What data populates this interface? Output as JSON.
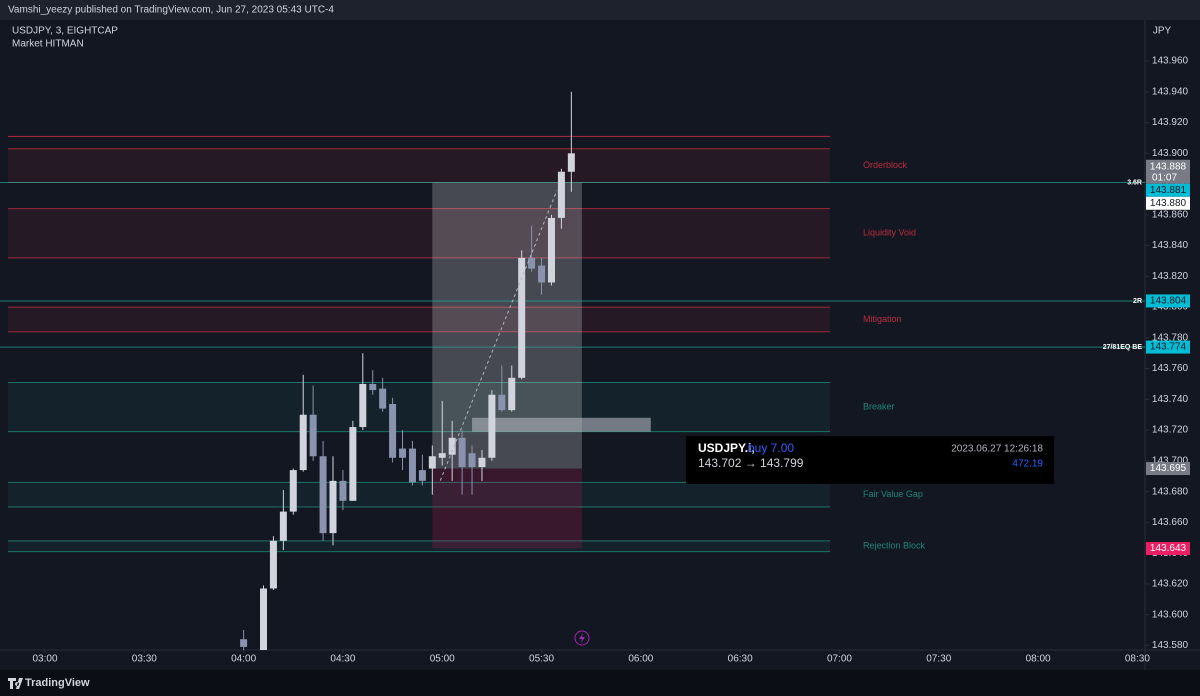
{
  "header": {
    "publisher": "Vamshi_yeezy published on TradingView.com, Jun 27, 2023 05:43 UTC-4",
    "brand": "TradingView"
  },
  "chart_data": {
    "type": "candlestick",
    "title": "USDJPY, 3, EIGHTCAP",
    "subtitle": "Market HITMAN",
    "y_axis_label": "JPY",
    "x": [
      240,
      246,
      249,
      252,
      255,
      258,
      261,
      264,
      267,
      270,
      273,
      276,
      279,
      282,
      285,
      288,
      291,
      294,
      297,
      300,
      303,
      306,
      309,
      312,
      315,
      318,
      321,
      324,
      327,
      330,
      333,
      336,
      339
    ],
    "open": [
      143.584,
      143.577,
      143.617,
      143.648,
      143.667,
      143.694,
      143.73,
      143.703,
      143.653,
      143.687,
      143.674,
      143.722,
      143.75,
      143.747,
      143.737,
      143.708,
      143.708,
      143.694,
      143.695,
      143.702,
      143.704,
      143.715,
      143.705,
      143.696,
      143.702,
      143.743,
      143.733,
      143.754,
      143.832,
      143.827,
      143.816,
      143.858,
      143.888
    ],
    "high": [
      143.59,
      143.619,
      143.651,
      143.681,
      143.695,
      143.756,
      143.749,
      143.713,
      143.703,
      143.694,
      143.726,
      143.77,
      143.759,
      143.754,
      143.741,
      143.72,
      143.713,
      143.704,
      143.71,
      143.739,
      143.726,
      143.72,
      143.71,
      143.707,
      143.746,
      143.762,
      143.762,
      143.837,
      143.853,
      143.832,
      143.86,
      143.89,
      143.94
    ],
    "low": [
      143.577,
      143.577,
      143.616,
      143.642,
      143.665,
      143.693,
      143.7,
      143.648,
      143.645,
      143.668,
      143.674,
      143.72,
      143.743,
      143.732,
      143.699,
      143.694,
      143.684,
      143.684,
      143.678,
      143.697,
      143.687,
      143.678,
      143.678,
      143.687,
      143.7,
      143.732,
      143.732,
      143.753,
      143.823,
      143.808,
      143.814,
      143.851,
      143.875
    ],
    "close": [
      143.579,
      143.617,
      143.648,
      143.667,
      143.694,
      143.73,
      143.703,
      143.653,
      143.687,
      143.674,
      143.722,
      143.75,
      143.746,
      143.734,
      143.702,
      143.702,
      143.686,
      143.687,
      143.703,
      143.705,
      143.715,
      143.696,
      143.696,
      143.702,
      143.743,
      143.733,
      143.754,
      143.832,
      143.825,
      143.816,
      143.858,
      143.888,
      143.9
    ],
    "up_color": "#d1d4dc",
    "down_color": "#8a93ad",
    "xlim": [
      166.4,
      512.3
    ],
    "xticks": [
      {
        "value": 180,
        "label": "03:00"
      },
      {
        "value": 210,
        "label": "03:30"
      },
      {
        "value": 240,
        "label": "04:00"
      },
      {
        "value": 270,
        "label": "04:30"
      },
      {
        "value": 300,
        "label": "05:00"
      },
      {
        "value": 330,
        "label": "05:30"
      },
      {
        "value": 360,
        "label": "06:00"
      },
      {
        "value": 390,
        "label": "06:30"
      },
      {
        "value": 420,
        "label": "07:00"
      },
      {
        "value": 450,
        "label": "07:30"
      },
      {
        "value": 480,
        "label": "08:00"
      },
      {
        "value": 510,
        "label": "08:30"
      }
    ],
    "ylim": [
      143.577,
      143.988
    ],
    "yticks": [
      {
        "value": 143.58,
        "label": "143.580"
      },
      {
        "value": 143.6,
        "label": "143.600"
      },
      {
        "value": 143.62,
        "label": "143.620"
      },
      {
        "value": 143.64,
        "label": "143.640"
      },
      {
        "value": 143.66,
        "label": "143.660"
      },
      {
        "value": 143.68,
        "label": "143.680"
      },
      {
        "value": 143.7,
        "label": "143.700"
      },
      {
        "value": 143.72,
        "label": "143.720"
      },
      {
        "value": 143.74,
        "label": "143.740"
      },
      {
        "value": 143.76,
        "label": "143.760"
      },
      {
        "value": 143.78,
        "label": "143.780"
      },
      {
        "value": 143.8,
        "label": "143.800"
      },
      {
        "value": 143.82,
        "label": "143.820"
      },
      {
        "value": 143.84,
        "label": "143.840"
      },
      {
        "value": 143.86,
        "label": "143.860"
      },
      {
        "value": 143.88,
        "label": "143.880"
      },
      {
        "value": 143.9,
        "label": "143.900"
      },
      {
        "value": 143.92,
        "label": "143.920"
      },
      {
        "value": 143.94,
        "label": "143.940"
      },
      {
        "value": 143.96,
        "label": "143.960"
      }
    ],
    "zones": [
      {
        "label": "Orderblock",
        "top": 143.903,
        "bottom": 143.881,
        "color": "#f23645"
      },
      {
        "label": "Liquidity Void",
        "top": 143.864,
        "bottom": 143.832,
        "color": "#f23645"
      },
      {
        "label": "Mitigation",
        "top": 143.8,
        "bottom": 143.784,
        "color": "#f23645"
      },
      {
        "label": "Breaker",
        "top": 143.751,
        "bottom": 143.719,
        "color": "#22ab94"
      },
      {
        "label": "Fair Value Gap",
        "top": 143.686,
        "bottom": 143.67,
        "color": "#22ab94"
      },
      {
        "label": "Rejection Block",
        "top": 143.648,
        "bottom": 143.641,
        "color": "#22ab94"
      }
    ],
    "resistance_line": 143.911,
    "levels": [
      {
        "label": "3.6R",
        "value": 143.881
      },
      {
        "label": "2R",
        "value": 143.804
      },
      {
        "label": "27/81EQ BE",
        "value": 143.774
      }
    ],
    "price_tags": [
      {
        "value": 143.888,
        "countdown": "01:07",
        "color": "#787b86"
      },
      {
        "value": 143.881,
        "color": "#00bcd4"
      },
      {
        "value": {
          "value": 143.88,
          "label": "143.880"
        },
        "color": "#ffffff"
      },
      {
        "value": 143.804,
        "color": "#00bcd4"
      },
      {
        "value": 143.774,
        "color": "#00bcd4"
      },
      {
        "value": 143.695,
        "color": "#787b86"
      },
      {
        "value": 143.643,
        "color": "#e91e63"
      }
    ],
    "position": {
      "start": 297,
      "end": 342.2,
      "entry": 143.695,
      "target": 143.881,
      "stop": 143.643,
      "highlight_top": 143.728,
      "highlight_bottom": 143.719,
      "highlight_start": 309,
      "highlight_end": 363
    }
  },
  "trade_popup": {
    "symbol": "USDJPY.i,",
    "side": "buy 7.00",
    "time": "2023.06.27 12:26:18",
    "prices": "143.702 → 143.799",
    "profit": "472.19"
  }
}
